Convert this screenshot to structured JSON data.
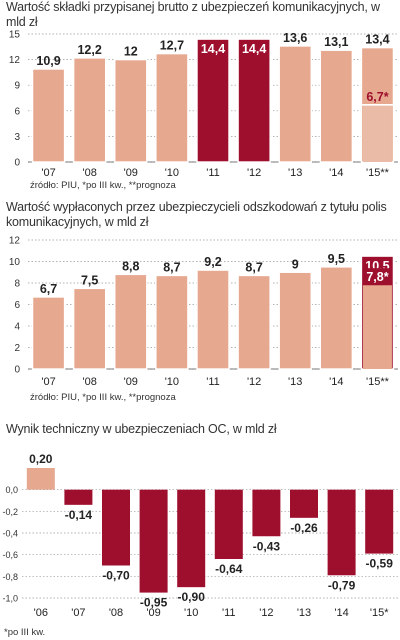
{
  "chart_data": [
    {
      "type": "bar",
      "title": "Wartość składki przypisanej brutto z ubezpieczeń komunikacyjnych, w mld zł",
      "note": "źródło: PIU, *po III kw., **prognoza",
      "categories": [
        "'07",
        "'08",
        "'09",
        "'10",
        "'11",
        "'12",
        "'13",
        "'14",
        "'15**"
      ],
      "values": [
        10.9,
        12.2,
        12,
        12.7,
        14.4,
        14.4,
        13.6,
        13.1,
        13.4
      ],
      "labels": [
        "10,9",
        "12,2",
        "12",
        "12,7",
        "14,4",
        "14,4",
        "13,6",
        "13,1",
        "13,4"
      ],
      "highlight": [
        false,
        false,
        false,
        false,
        true,
        true,
        false,
        false,
        false
      ],
      "overlay": {
        "index": 8,
        "value": 6.7,
        "label": "6,7*"
      },
      "ylim": [
        0,
        15
      ],
      "yticks": [
        0,
        3,
        6,
        9,
        12,
        15
      ],
      "ytick_labels": [
        "0",
        "3",
        "6",
        "9",
        "12",
        "15"
      ],
      "colors": {
        "bar": "#e6a88f",
        "highlight": "#9e0f2e",
        "overlay_highlight": "#9e0f2e"
      }
    },
    {
      "type": "bar",
      "title": "Wartość wypłaconych przez ubezpieczycieli odszkodowań z tytułu polis komunikacyjnych, w mld zł",
      "note": "źródło: PIU, *po III kw., **prognoza",
      "categories": [
        "'07",
        "'08",
        "'09",
        "'10",
        "'11",
        "'12",
        "'13",
        "'14",
        "'15**"
      ],
      "values": [
        6.7,
        7.5,
        8.8,
        8.7,
        9.2,
        8.7,
        9,
        9.5,
        10.5
      ],
      "labels": [
        "6,7",
        "7,5",
        "8,8",
        "8,7",
        "9,2",
        "8,7",
        "9",
        "9,5",
        "10,5"
      ],
      "highlight": [
        false,
        false,
        false,
        false,
        false,
        false,
        false,
        false,
        true
      ],
      "overlay": {
        "index": 8,
        "value": 7.8,
        "label": "7,8*"
      },
      "ylim": [
        0,
        12
      ],
      "yticks": [
        0,
        2,
        4,
        6,
        8,
        10,
        12
      ],
      "ytick_labels": [
        "0",
        "2",
        "4",
        "6",
        "8",
        "10",
        "12"
      ],
      "colors": {
        "bar": "#e6a88f",
        "highlight": "#9e0f2e"
      }
    },
    {
      "type": "bar",
      "title": "Wynik techniczny w ubezpieczeniach OC, w mld zł",
      "note": "*po III kw.",
      "categories": [
        "'06",
        "'07",
        "'08",
        "'09",
        "'10",
        "'11",
        "'12",
        "'13",
        "'14",
        "'15*"
      ],
      "values": [
        0.2,
        -0.14,
        -0.7,
        -0.95,
        -0.9,
        -0.64,
        -0.43,
        -0.26,
        -0.79,
        -0.59
      ],
      "labels": [
        "0,20",
        "-0,14",
        "-0,70",
        "-0,95",
        "-0,90",
        "-0,64",
        "-0,43",
        "-0,26",
        "-0,79",
        "-0,59"
      ],
      "ylim": [
        -1.0,
        0.2
      ],
      "yticks": [
        0.0,
        -0.2,
        -0.4,
        -0.6,
        -0.8,
        -1.0
      ],
      "ytick_labels": [
        "0,0",
        "-0,2",
        "-0,4",
        "-0,6",
        "-0,8",
        "-1,0"
      ],
      "colors": {
        "positive": "#e6a88f",
        "negative": "#9e0f2e"
      }
    }
  ]
}
